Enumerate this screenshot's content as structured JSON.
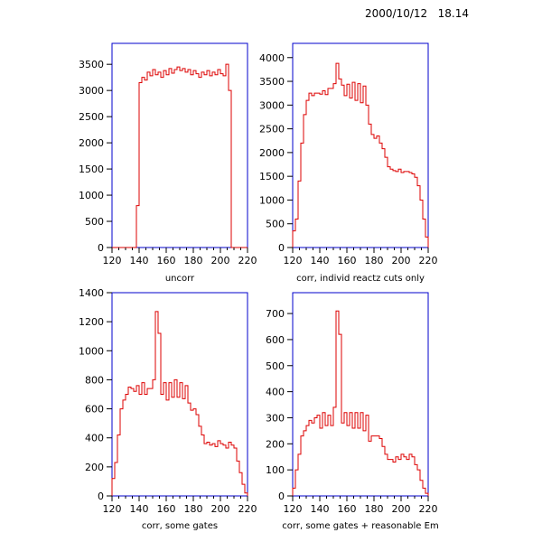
{
  "timestamp": "2000/10/12   18.14",
  "colors": {
    "frame": "#0000cc",
    "histogram": "#dd0000",
    "text": "#000000"
  },
  "chart_data": [
    {
      "type": "histogram",
      "caption": "uncorr",
      "xlim": [
        120,
        220
      ],
      "ylim": [
        0,
        3900
      ],
      "xticks": [
        120,
        140,
        160,
        180,
        200,
        220
      ],
      "yticks": [
        0,
        500,
        1000,
        1500,
        2000,
        2500,
        3000,
        3500
      ],
      "x": [
        120,
        122,
        124,
        126,
        128,
        130,
        132,
        134,
        136,
        138,
        140,
        142,
        144,
        146,
        148,
        150,
        152,
        154,
        156,
        158,
        160,
        162,
        164,
        166,
        168,
        170,
        172,
        174,
        176,
        178,
        180,
        182,
        184,
        186,
        188,
        190,
        192,
        194,
        196,
        198,
        200,
        202,
        204,
        206,
        208,
        210,
        212,
        214,
        216,
        218
      ],
      "values": [
        0,
        0,
        0,
        0,
        0,
        0,
        0,
        0,
        0,
        800,
        3150,
        3250,
        3200,
        3350,
        3280,
        3400,
        3300,
        3350,
        3250,
        3380,
        3300,
        3420,
        3330,
        3400,
        3450,
        3380,
        3420,
        3350,
        3400,
        3300,
        3380,
        3320,
        3250,
        3350,
        3300,
        3380,
        3280,
        3350,
        3300,
        3400,
        3320,
        3280,
        3500,
        3000,
        0,
        0,
        0,
        0,
        0,
        0
      ]
    },
    {
      "type": "histogram",
      "caption": "corr, individ reactz cuts only",
      "xlim": [
        120,
        220
      ],
      "ylim": [
        0,
        4300
      ],
      "xticks": [
        120,
        140,
        160,
        180,
        200,
        220
      ],
      "yticks": [
        0,
        500,
        1000,
        1500,
        2000,
        2500,
        3000,
        3500,
        4000
      ],
      "x": [
        120,
        122,
        124,
        126,
        128,
        130,
        132,
        134,
        136,
        138,
        140,
        142,
        144,
        146,
        148,
        150,
        152,
        154,
        156,
        158,
        160,
        162,
        164,
        166,
        168,
        170,
        172,
        174,
        176,
        178,
        180,
        182,
        184,
        186,
        188,
        190,
        192,
        194,
        196,
        198,
        200,
        202,
        204,
        206,
        208,
        210,
        212,
        214,
        216,
        218
      ],
      "values": [
        350,
        600,
        1400,
        2200,
        2800,
        3100,
        3250,
        3200,
        3250,
        3250,
        3230,
        3300,
        3220,
        3350,
        3350,
        3450,
        3880,
        3550,
        3420,
        3200,
        3440,
        3150,
        3480,
        3100,
        3450,
        3050,
        3400,
        3000,
        2600,
        2380,
        2300,
        2350,
        2200,
        2080,
        1900,
        1700,
        1650,
        1620,
        1600,
        1650,
        1580,
        1600,
        1600,
        1580,
        1550,
        1480,
        1300,
        1000,
        600,
        220
      ]
    },
    {
      "type": "histogram",
      "caption": "corr, some gates",
      "xlim": [
        120,
        220
      ],
      "ylim": [
        0,
        1400
      ],
      "xticks": [
        120,
        140,
        160,
        180,
        200,
        220
      ],
      "yticks": [
        0,
        200,
        400,
        600,
        800,
        1000,
        1200,
        1400
      ],
      "x": [
        120,
        122,
        124,
        126,
        128,
        130,
        132,
        134,
        136,
        138,
        140,
        142,
        144,
        146,
        148,
        150,
        152,
        154,
        156,
        158,
        160,
        162,
        164,
        166,
        168,
        170,
        172,
        174,
        176,
        178,
        180,
        182,
        184,
        186,
        188,
        190,
        192,
        194,
        196,
        198,
        200,
        202,
        204,
        206,
        208,
        210,
        212,
        214,
        216,
        218
      ],
      "values": [
        120,
        230,
        420,
        600,
        660,
        700,
        750,
        740,
        720,
        760,
        700,
        780,
        700,
        740,
        740,
        800,
        1270,
        1120,
        700,
        780,
        660,
        780,
        680,
        800,
        680,
        780,
        670,
        760,
        640,
        590,
        600,
        560,
        480,
        420,
        360,
        370,
        350,
        360,
        340,
        380,
        360,
        350,
        330,
        370,
        350,
        330,
        240,
        160,
        80,
        20
      ]
    },
    {
      "type": "histogram",
      "caption": "corr, some gates + reasonable Em",
      "xlim": [
        120,
        220
      ],
      "ylim": [
        0,
        780
      ],
      "xticks": [
        120,
        140,
        160,
        180,
        200,
        220
      ],
      "yticks": [
        0,
        100,
        200,
        300,
        400,
        500,
        600,
        700
      ],
      "x": [
        120,
        122,
        124,
        126,
        128,
        130,
        132,
        134,
        136,
        138,
        140,
        142,
        144,
        146,
        148,
        150,
        152,
        154,
        156,
        158,
        160,
        162,
        164,
        166,
        168,
        170,
        172,
        174,
        176,
        178,
        180,
        182,
        184,
        186,
        188,
        190,
        192,
        194,
        196,
        198,
        200,
        202,
        204,
        206,
        208,
        210,
        212,
        214,
        216,
        218
      ],
      "values": [
        30,
        100,
        160,
        230,
        250,
        270,
        290,
        280,
        300,
        310,
        260,
        320,
        270,
        310,
        270,
        340,
        710,
        620,
        280,
        320,
        270,
        320,
        260,
        320,
        260,
        320,
        250,
        310,
        210,
        230,
        230,
        230,
        220,
        190,
        160,
        140,
        140,
        130,
        150,
        140,
        160,
        150,
        140,
        160,
        150,
        120,
        100,
        60,
        30,
        10
      ]
    }
  ]
}
